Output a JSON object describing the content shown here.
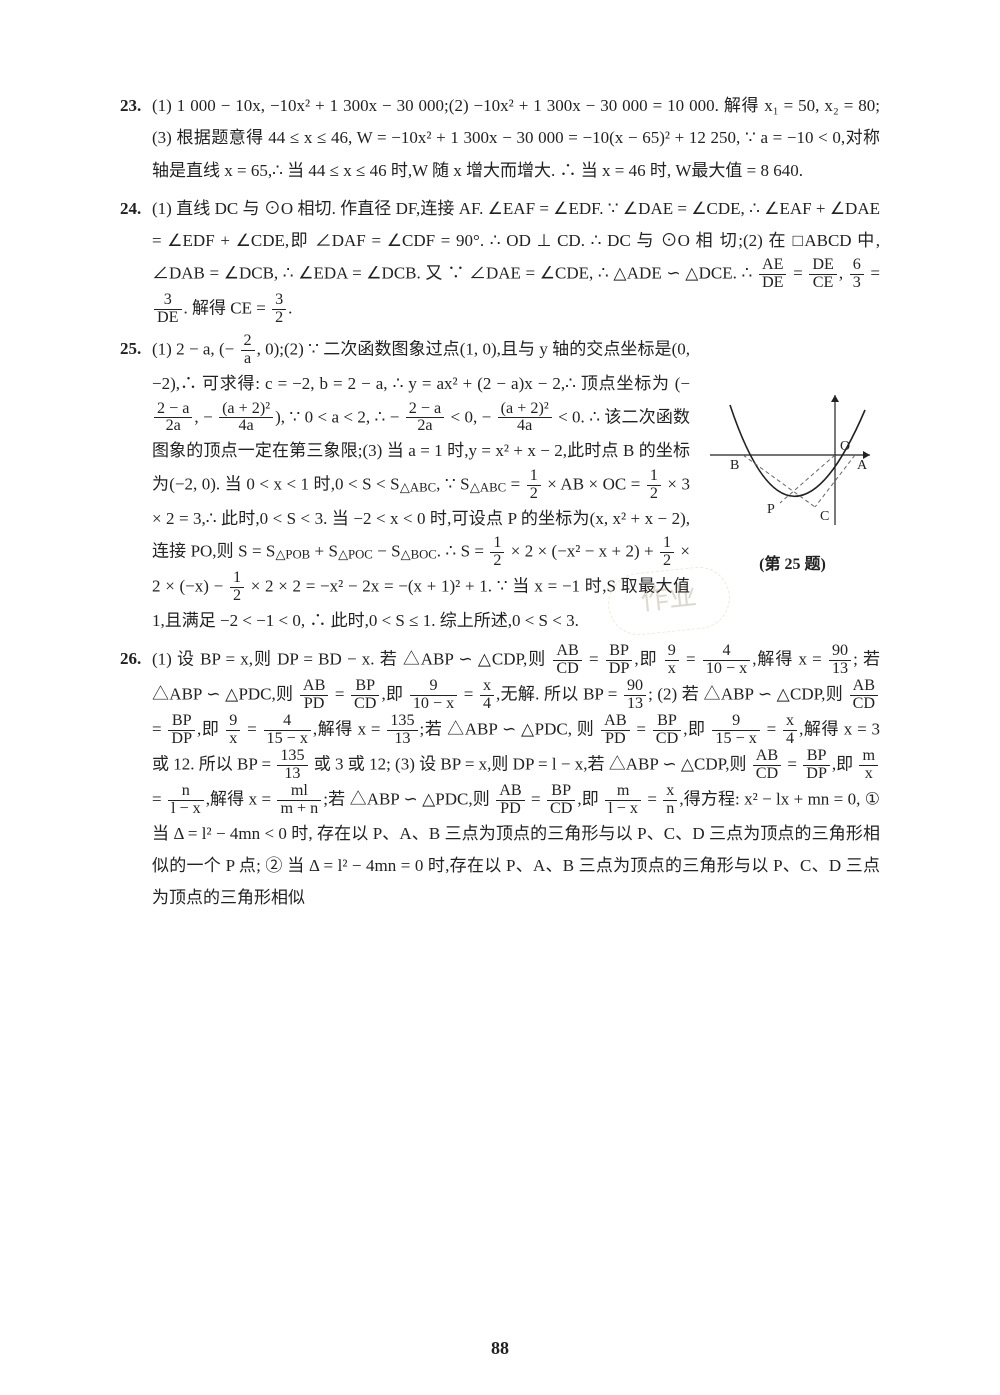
{
  "page_number": "88",
  "watermark_text": "作业",
  "figure": {
    "caption": "(第 25 题)",
    "labels": {
      "O": "O",
      "A": "A",
      "B": "B",
      "C": "C",
      "P": "P"
    },
    "colors": {
      "stroke": "#222222",
      "dash": "#666666"
    }
  },
  "problems": [
    {
      "num": "23.",
      "text": "(1) 1 000 − 10x, −10x² + 1 300x − 30 000;(2) −10x² + 1 300x − 30 000 = 10 000. 解得 x₁ = 50, x₂ = 80; (3) 根据题意得 44 ≤ x ≤ 46, W = −10x² + 1 300x − 30 000 = −10(x − 65)² + 12 250, ∵ a = −10 < 0,对称轴是直线 x = 65,∴ 当 44 ≤ x ≤ 46 时,W 随 x 增大而增大. ∴ 当 x = 46 时, W最大值 = 8 640."
    },
    {
      "num": "24.",
      "html": "(1) 直线 DC 与 ⊙O 相切. 作直径 DF,连接 AF. ∠EAF = ∠EDF. ∵ ∠DAE = ∠CDE, ∴ ∠EAF + ∠DAE = ∠EDF + ∠CDE,即 ∠DAF = ∠CDF = 90°. ∴ OD ⊥ CD. ∴ DC 与 ⊙O 相 切;(2) 在 □ABCD 中, ∠DAB = ∠DCB, ∴ ∠EDA = ∠DCB. 又 ∵ ∠DAE = ∠CDE, ∴ △ADE ∽ △DCE. ∴ <span class='frac'><span class='n'>AE</span><span class='d'>DE</span></span> = <span class='frac'><span class='n'>DE</span><span class='d'>CE</span></span>, <span class='frac'><span class='n'>6</span><span class='d'>3</span></span> = <span class='frac'><span class='n'>3</span><span class='d'>DE</span></span>. 解得 CE = <span class='frac'><span class='n'>3</span><span class='d'>2</span></span>."
    },
    {
      "num": "25.",
      "html": "(1) 2 − a, (− <span class='frac'><span class='n'>2</span><span class='d'>a</span></span>, 0);(2) ∵ 二次函数图象过点(1, 0),且与 y 轴的交点坐标是(0, −2),∴ 可求得: c = −2, b = 2 − a, ∴ y = ax² + (2 − a)x − 2,∴ 顶点坐标为 (− <span class='frac'><span class='n'>2 − a</span><span class='d'>2a</span></span>, − <span class='frac'><span class='n'>(a + 2)²</span><span class='d'>4a</span></span>), ∵ 0 < a < 2, ∴ − <span class='frac'><span class='n'>2 − a</span><span class='d'>2a</span></span> < 0, − <span class='frac'><span class='n'>(a + 2)²</span><span class='d'>4a</span></span> < 0. ∴ 该二次函数图象的顶点一定在第三象限;(3) 当 a = 1 时,y = x² + x − 2,此时点 B 的坐标为(−2, 0). 当 0 < x < 1 时,0 < S < S<sub>△ABC</sub>, ∵ S<sub>△ABC</sub> = <span class='frac'><span class='n'>1</span><span class='d'>2</span></span> × AB × OC = <span class='frac'><span class='n'>1</span><span class='d'>2</span></span> × 3 × 2 = 3,∴ 此时,0 < S < 3. 当 −2 < x < 0 时,可设点 P 的坐标为(x, x² + x − 2),连接 PO,则 S = S<sub>△POB</sub> + S<sub>△POC</sub> − S<sub>△BOC</sub>. ∴ S = <span class='frac'><span class='n'>1</span><span class='d'>2</span></span> × 2 × (−x² − x + 2) + <span class='frac'><span class='n'>1</span><span class='d'>2</span></span> × 2 × (−x) − <span class='frac'><span class='n'>1</span><span class='d'>2</span></span> × 2 × 2 = −x² − 2x = −(x + 1)² + 1. ∵ 当 x = −1 时,S 取最大值 1,且满足 −2 < −1 < 0, ∴ 此时,0 < S ≤ 1. 综上所述,0 < S < 3."
    },
    {
      "num": "26.",
      "html": "(1) 设 BP = x,则 DP = BD − x. 若 △ABP ∽ △CDP,则 <span class='frac'><span class='n'>AB</span><span class='d'>CD</span></span> = <span class='frac'><span class='n'>BP</span><span class='d'>DP</span></span>,即 <span class='frac'><span class='n'>9</span><span class='d'>x</span></span> = <span class='frac'><span class='n'>4</span><span class='d'>10 − x</span></span>,解得 x = <span class='frac'><span class='n'>90</span><span class='d'>13</span></span>; 若 △ABP ∽ △PDC,则 <span class='frac'><span class='n'>AB</span><span class='d'>PD</span></span> = <span class='frac'><span class='n'>BP</span><span class='d'>CD</span></span>,即 <span class='frac'><span class='n'>9</span><span class='d'>10 − x</span></span> = <span class='frac'><span class='n'>x</span><span class='d'>4</span></span>,无解. 所以 BP = <span class='frac'><span class='n'>90</span><span class='d'>13</span></span>; (2) 若 △ABP ∽ △CDP,则 <span class='frac'><span class='n'>AB</span><span class='d'>CD</span></span> = <span class='frac'><span class='n'>BP</span><span class='d'>DP</span></span>,即 <span class='frac'><span class='n'>9</span><span class='d'>x</span></span> = <span class='frac'><span class='n'>4</span><span class='d'>15 − x</span></span>,解得 x = <span class='frac'><span class='n'>135</span><span class='d'>13</span></span>;若 △ABP ∽ △PDC, 则 <span class='frac'><span class='n'>AB</span><span class='d'>PD</span></span> = <span class='frac'><span class='n'>BP</span><span class='d'>CD</span></span>,即 <span class='frac'><span class='n'>9</span><span class='d'>15 − x</span></span> = <span class='frac'><span class='n'>x</span><span class='d'>4</span></span>,解得 x = 3 或 12. 所以 BP = <span class='frac'><span class='n'>135</span><span class='d'>13</span></span> 或 3 或 12; (3) 设 BP = x,则 DP = l − x,若 △ABP ∽ △CDP,则 <span class='frac'><span class='n'>AB</span><span class='d'>CD</span></span> = <span class='frac'><span class='n'>BP</span><span class='d'>DP</span></span>,即 <span class='frac'><span class='n'>m</span><span class='d'>x</span></span> = <span class='frac'><span class='n'>n</span><span class='d'>l − x</span></span>,解得 x = <span class='frac'><span class='n'>ml</span><span class='d'>m + n</span></span>;若 △ABP ∽ △PDC,则 <span class='frac'><span class='n'>AB</span><span class='d'>PD</span></span> = <span class='frac'><span class='n'>BP</span><span class='d'>CD</span></span>,即 <span class='frac'><span class='n'>m</span><span class='d'>l − x</span></span> = <span class='frac'><span class='n'>x</span><span class='d'>n</span></span>,得方程: x² − lx + mn = 0, ① 当 Δ = l² − 4mn < 0 时, 存在以 P、A、B 三点为顶点的三角形与以 P、C、D 三点为顶点的三角形相似的一个 P 点; ② 当 Δ = l² − 4mn = 0 时,存在以 P、A、B 三点为顶点的三角形与以 P、C、D 三点为顶点的三角形相似"
    }
  ]
}
